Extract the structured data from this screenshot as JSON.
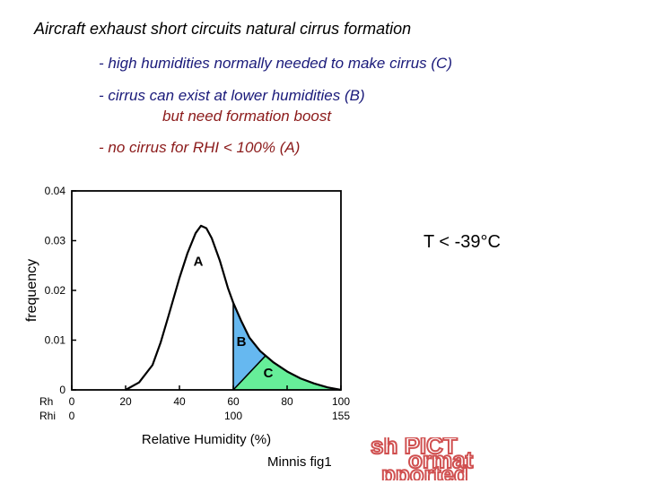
{
  "slide": {
    "title": "Aircraft exhaust short circuits natural cirrus formation",
    "bullets": [
      "- high humidities normally needed to make cirrus (C)",
      "- cirrus can exist at lower humidities (B)",
      "but need formation boost",
      "- no cirrus for RHI < 100% (A)"
    ],
    "temperature_note": "T < -39°C",
    "caption": "Minnis  fig1",
    "ghost_text": [
      "sh PICT",
      "ormat",
      "pported"
    ],
    "colors": {
      "title": "#000000",
      "bullet_blue": "#1a1a7a",
      "bullet_red": "#8b1a1a",
      "region_B": "#66b8f0",
      "region_C": "#66ee99",
      "ghost": "#d05050"
    }
  },
  "chart_data": {
    "type": "area",
    "ylabel": "frequency",
    "xlabel": "Relative Humidity (%)",
    "ylim": [
      0,
      0.04
    ],
    "y_ticks": [
      "0",
      "0.01",
      "0.02",
      "0.03",
      "0.04"
    ],
    "xlim": [
      0,
      100
    ],
    "x_axis_rows": [
      {
        "label": "Rh",
        "ticks": [
          {
            "x": 0,
            "text": "0"
          },
          {
            "x": 20,
            "text": "20"
          },
          {
            "x": 40,
            "text": "40"
          },
          {
            "x": 60,
            "text": "60"
          },
          {
            "x": 80,
            "text": "80"
          },
          {
            "x": 100,
            "text": "100"
          }
        ]
      },
      {
        "label": "Rhi",
        "ticks": [
          {
            "x": 0,
            "text": "0"
          },
          {
            "x": 60,
            "text": "100"
          },
          {
            "x": 100,
            "text": "155"
          }
        ]
      }
    ],
    "curve": {
      "x": [
        20,
        25,
        30,
        33,
        36,
        40,
        43,
        46,
        48,
        50,
        52,
        55,
        58,
        60,
        63,
        66,
        70,
        75,
        80,
        85,
        90,
        95,
        100
      ],
      "y": [
        0.0,
        0.0015,
        0.005,
        0.0095,
        0.015,
        0.0225,
        0.0275,
        0.0315,
        0.033,
        0.0325,
        0.0305,
        0.026,
        0.0205,
        0.0175,
        0.0138,
        0.0105,
        0.0078,
        0.0055,
        0.0037,
        0.0023,
        0.0013,
        0.0005,
        0.0
      ]
    },
    "regions": [
      {
        "label": "A",
        "x_range": [
          20,
          60
        ],
        "fill": "none",
        "label_pos": {
          "x": 47,
          "y": 0.025
        }
      },
      {
        "label": "B",
        "x_range": [
          60,
          72
        ],
        "fill": "#66b8f0",
        "boundary": [
          [
            60,
            0
          ],
          [
            72,
            0.0075
          ]
        ],
        "label_pos": {
          "x": 63,
          "y": 0.0088
        }
      },
      {
        "label": "C",
        "x_range": [
          60,
          100
        ],
        "fill": "#66ee99",
        "label_pos": {
          "x": 73,
          "y": 0.0025
        }
      }
    ],
    "grid": false,
    "legend": "none"
  }
}
